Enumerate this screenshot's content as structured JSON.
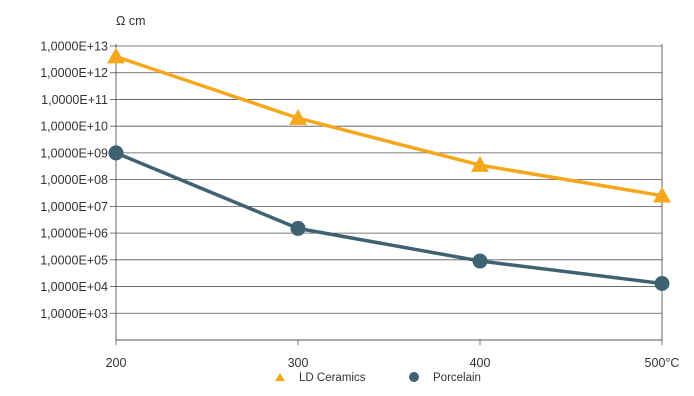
{
  "chart_data": {
    "type": "line",
    "title": "",
    "xlabel": "",
    "ylabel": "Ω cm",
    "y_scale": "log",
    "x": [
      200,
      300,
      400,
      500
    ],
    "x_tick_labels": [
      "200",
      "300",
      "400",
      "500°C"
    ],
    "xlim": [
      200,
      500
    ],
    "y_tick_labels": [
      "1,0000E+13",
      "1,0000E+12",
      "1,0000E+11",
      "1,0000E+10",
      "1,0000E+09",
      "1,0000E+08",
      "1,0000E+07",
      "1,0000E+06",
      "1,0000E+05",
      "1,0000E+04",
      "1,0000E+03"
    ],
    "ylim": [
      100,
      10000000000000
    ],
    "grid": "horizontal",
    "legend_position": "bottom-center",
    "series": [
      {
        "name": "LD Ceramics",
        "marker": "triangle",
        "color": "#f5a81c",
        "values": [
          4000000000000,
          20000000000,
          350000000,
          25000000
        ]
      },
      {
        "name": "Porcelain",
        "marker": "circle",
        "color": "#3f6272",
        "values": [
          1000000000,
          1500000,
          90000,
          13000
        ]
      }
    ]
  }
}
